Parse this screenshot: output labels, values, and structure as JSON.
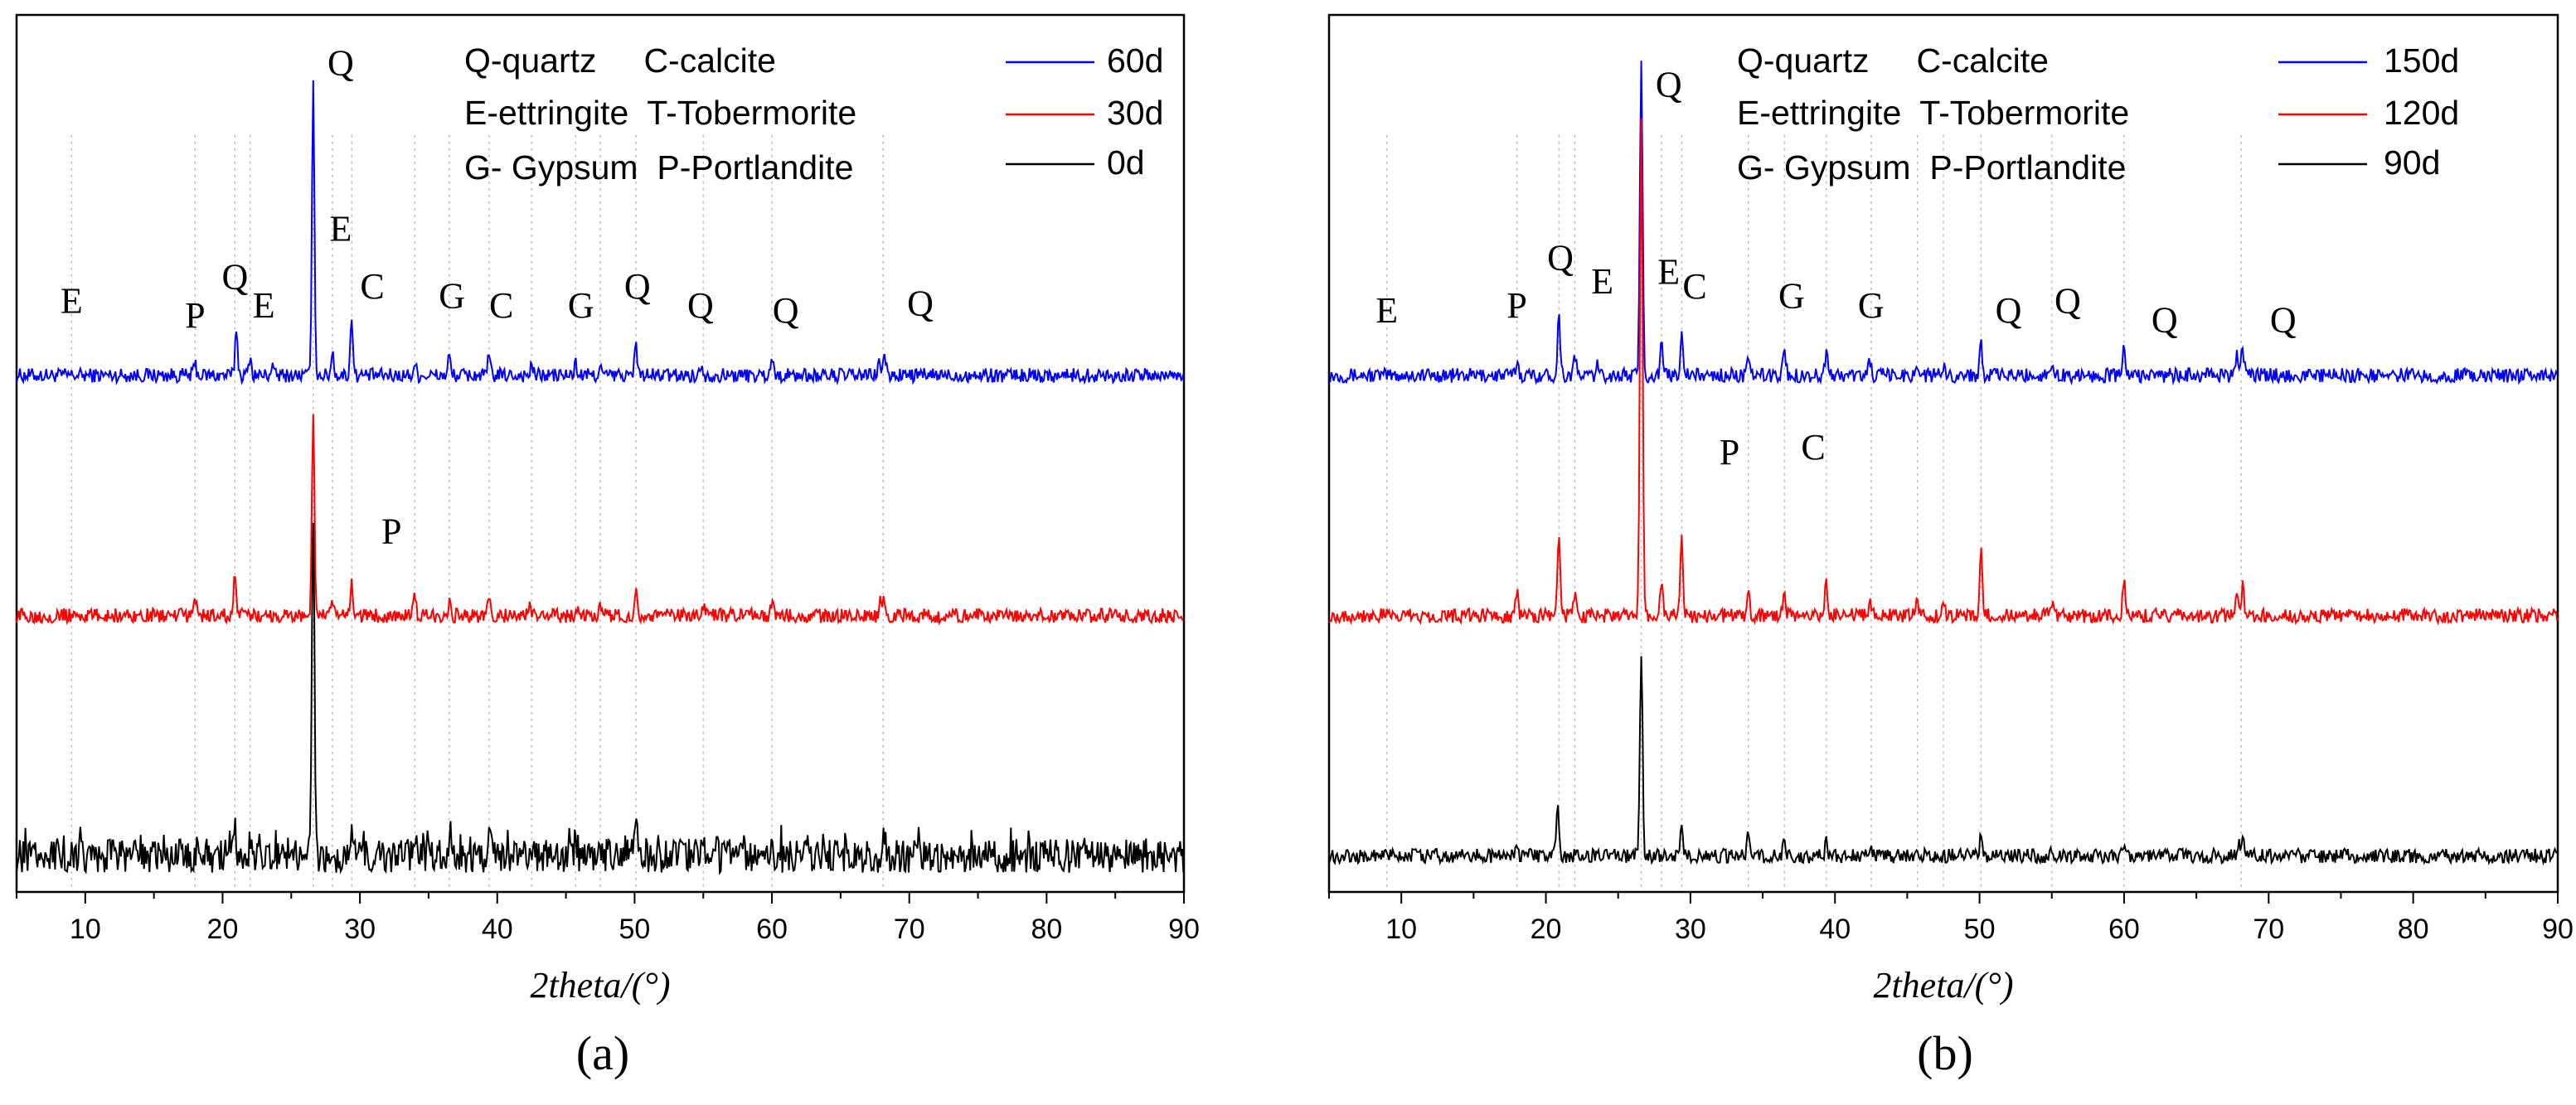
{
  "chart_data": [
    {
      "id": "a",
      "type": "line",
      "subfigure_label": "(a)",
      "xlabel": "2theta/(°)",
      "ylabel": "",
      "xlim": [
        5,
        90
      ],
      "xticks": [
        10,
        20,
        30,
        40,
        50,
        60,
        70,
        80,
        90
      ],
      "legend_position": "top-right",
      "legend_key_lines": [
        "Q-quartz     C-calcite",
        "E-ettringite  T-Tobermorite",
        "G- Gypsum  P-Portlandite"
      ],
      "series": [
        {
          "name": "60d",
          "color": "#0000ff",
          "offset": 2.0,
          "noise": 0.03,
          "peaks": [
            [
              18.0,
              0.05
            ],
            [
              21.0,
              0.2
            ],
            [
              22.0,
              0.08
            ],
            [
              23.6,
              0.04
            ],
            [
              26.6,
              1.2
            ],
            [
              28.0,
              0.1
            ],
            [
              29.4,
              0.25
            ],
            [
              34.0,
              0.05
            ],
            [
              36.5,
              0.08
            ],
            [
              39.4,
              0.08
            ],
            [
              42.5,
              0.04
            ],
            [
              45.7,
              0.05
            ],
            [
              47.5,
              0.04
            ],
            [
              50.1,
              0.14
            ],
            [
              54.9,
              0.05
            ],
            [
              60.0,
              0.08
            ],
            [
              67.8,
              0.06
            ],
            [
              68.2,
              0.09
            ]
          ]
        },
        {
          "name": "30d",
          "color": "#ff0000",
          "offset": 1.0,
          "noise": 0.03,
          "peaks": [
            [
              18.0,
              0.08
            ],
            [
              20.9,
              0.18
            ],
            [
              26.6,
              0.84
            ],
            [
              28.0,
              0.06
            ],
            [
              29.4,
              0.14
            ],
            [
              34.0,
              0.08
            ],
            [
              36.5,
              0.06
            ],
            [
              39.4,
              0.06
            ],
            [
              42.4,
              0.04
            ],
            [
              45.8,
              0.04
            ],
            [
              47.5,
              0.04
            ],
            [
              50.1,
              0.1
            ],
            [
              55.0,
              0.05
            ],
            [
              60.0,
              0.06
            ],
            [
              67.9,
              0.06
            ],
            [
              68.2,
              0.08
            ]
          ]
        },
        {
          "name": "0d",
          "color": "#000000",
          "offset": 0.0,
          "noise": 0.07,
          "peaks": [
            [
              20.9,
              0.12
            ],
            [
              26.6,
              1.45
            ],
            [
              29.4,
              0.12
            ],
            [
              34.0,
              0.1
            ],
            [
              35.0,
              0.08
            ],
            [
              36.5,
              0.08
            ],
            [
              39.4,
              0.14
            ],
            [
              42.4,
              0.06
            ],
            [
              45.7,
              0.06
            ],
            [
              50.1,
              0.14
            ],
            [
              55.0,
              0.05
            ],
            [
              60.0,
              0.12
            ],
            [
              68.1,
              0.08
            ]
          ]
        }
      ],
      "annotations": [
        {
          "text": "E",
          "x": 9.0,
          "y": 2.26
        },
        {
          "text": "P",
          "x": 18.0,
          "y": 2.2
        },
        {
          "text": "Q",
          "x": 20.9,
          "y": 2.36
        },
        {
          "text": "E",
          "x": 23.0,
          "y": 2.24
        },
        {
          "text": "Q",
          "x": 28.6,
          "y": 3.25
        },
        {
          "text": "E",
          "x": 28.6,
          "y": 2.56
        },
        {
          "text": "C",
          "x": 30.9,
          "y": 2.32
        },
        {
          "text": "G",
          "x": 36.7,
          "y": 2.28
        },
        {
          "text": "C",
          "x": 40.3,
          "y": 2.24
        },
        {
          "text": "G",
          "x": 46.1,
          "y": 2.24
        },
        {
          "text": "Q",
          "x": 50.2,
          "y": 2.32
        },
        {
          "text": "Q",
          "x": 54.8,
          "y": 2.24
        },
        {
          "text": "Q",
          "x": 61.0,
          "y": 2.22
        },
        {
          "text": "Q",
          "x": 70.8,
          "y": 2.25
        },
        {
          "text": "P",
          "x": 32.3,
          "y": 1.3
        }
      ],
      "guide_lines_x": [
        9.0,
        18.0,
        20.9,
        22.0,
        26.6,
        28.0,
        29.4,
        34.0,
        36.5,
        39.4,
        42.5,
        45.7,
        47.5,
        50.1,
        55.0,
        60.0,
        68.1
      ]
    },
    {
      "id": "b",
      "type": "line",
      "subfigure_label": "(b)",
      "xlabel": "2theta/(°)",
      "ylabel": "",
      "xlim": [
        5,
        90
      ],
      "xticks": [
        10,
        20,
        30,
        40,
        50,
        60,
        70,
        80,
        90
      ],
      "legend_position": "top-right",
      "legend_key_lines": [
        "Q-quartz     C-calcite",
        "E-ettringite  T-Tobermorite",
        "G- Gypsum  P-Portlandite"
      ],
      "series": [
        {
          "name": "150d",
          "color": "#0000ff",
          "offset": 2.0,
          "noise": 0.03,
          "peaks": [
            [
              18.0,
              0.06
            ],
            [
              20.9,
              0.25
            ],
            [
              22.0,
              0.08
            ],
            [
              23.6,
              0.04
            ],
            [
              26.6,
              1.32
            ],
            [
              28.0,
              0.12
            ],
            [
              29.4,
              0.2
            ],
            [
              34.0,
              0.05
            ],
            [
              36.5,
              0.12
            ],
            [
              39.4,
              0.1
            ],
            [
              42.4,
              0.06
            ],
            [
              45.7,
              0.05
            ],
            [
              47.5,
              0.04
            ],
            [
              50.1,
              0.14
            ],
            [
              55.0,
              0.06
            ],
            [
              60.0,
              0.12
            ],
            [
              67.8,
              0.1
            ],
            [
              68.2,
              0.12
            ]
          ]
        },
        {
          "name": "120d",
          "color": "#ff0000",
          "offset": 1.0,
          "noise": 0.03,
          "peaks": [
            [
              18.0,
              0.1
            ],
            [
              20.9,
              0.35
            ],
            [
              22.0,
              0.08
            ],
            [
              26.6,
              2.05
            ],
            [
              28.0,
              0.14
            ],
            [
              29.4,
              0.32
            ],
            [
              34.0,
              0.1
            ],
            [
              36.5,
              0.1
            ],
            [
              39.4,
              0.14
            ],
            [
              42.4,
              0.06
            ],
            [
              45.7,
              0.06
            ],
            [
              47.5,
              0.06
            ],
            [
              50.1,
              0.26
            ],
            [
              55.0,
              0.06
            ],
            [
              60.0,
              0.14
            ],
            [
              67.8,
              0.1
            ],
            [
              68.2,
              0.12
            ]
          ]
        },
        {
          "name": "90d",
          "color": "#000000",
          "offset": 0.0,
          "noise": 0.03,
          "peaks": [
            [
              18.0,
              0.06
            ],
            [
              20.8,
              0.2
            ],
            [
              26.6,
              0.84
            ],
            [
              29.4,
              0.14
            ],
            [
              34.0,
              0.08
            ],
            [
              36.5,
              0.06
            ],
            [
              39.4,
              0.06
            ],
            [
              42.4,
              0.04
            ],
            [
              45.7,
              0.04
            ],
            [
              50.1,
              0.1
            ],
            [
              55.0,
              0.04
            ],
            [
              60.0,
              0.06
            ],
            [
              67.9,
              0.06
            ],
            [
              68.2,
              0.08
            ]
          ]
        }
      ],
      "annotations": [
        {
          "text": "E",
          "x": 9.0,
          "y": 2.22
        },
        {
          "text": "P",
          "x": 18.0,
          "y": 2.24
        },
        {
          "text": "Q",
          "x": 21.0,
          "y": 2.44
        },
        {
          "text": "E",
          "x": 23.9,
          "y": 2.34
        },
        {
          "text": "Q",
          "x": 28.5,
          "y": 3.16
        },
        {
          "text": "E",
          "x": 28.5,
          "y": 2.38
        },
        {
          "text": "C",
          "x": 30.3,
          "y": 2.32
        },
        {
          "text": "G",
          "x": 37.0,
          "y": 2.28
        },
        {
          "text": "G",
          "x": 42.5,
          "y": 2.24
        },
        {
          "text": "Q",
          "x": 52.0,
          "y": 2.22
        },
        {
          "text": "Q",
          "x": 56.1,
          "y": 2.26
        },
        {
          "text": "Q",
          "x": 62.8,
          "y": 2.18
        },
        {
          "text": "Q",
          "x": 71.0,
          "y": 2.18
        },
        {
          "text": "P",
          "x": 32.7,
          "y": 1.63
        },
        {
          "text": "C",
          "x": 38.5,
          "y": 1.65
        }
      ],
      "guide_lines_x": [
        9.0,
        18.0,
        20.9,
        22.0,
        26.6,
        28.0,
        29.4,
        34.0,
        36.5,
        39.4,
        42.5,
        45.7,
        47.5,
        50.1,
        55.0,
        60.0,
        68.1
      ]
    }
  ]
}
